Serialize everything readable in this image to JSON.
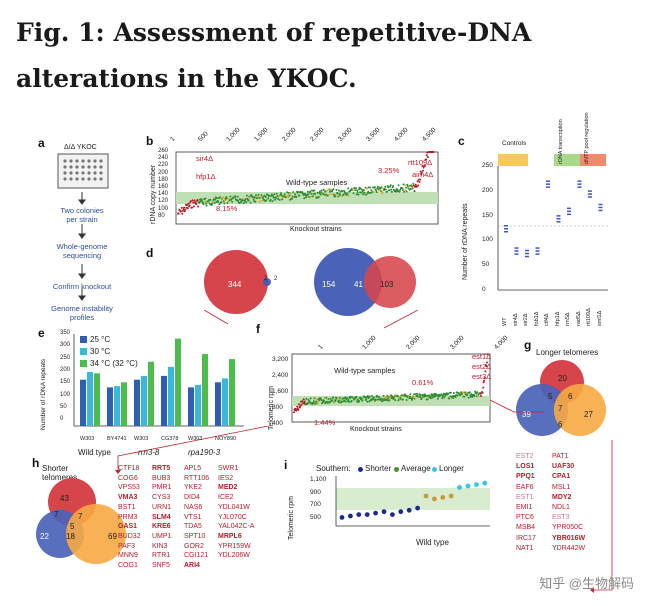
{
  "title": "Fig. 1: Assessment of repetitive-DNA alterations in the YKOC.",
  "panels": {
    "a": {
      "label": "a",
      "plate": "Δ/Δ YKOC",
      "steps": [
        "Two colonies per strain",
        "Whole-genome sequencing",
        "Confirm knockout",
        "Genome instability profiles"
      ]
    },
    "b": {
      "label": "b",
      "y_label": "rDNA copy number",
      "x_label": "Knockout strains",
      "x_ticks": [
        "1",
        "500",
        "1,000",
        "1,500",
        "2,000",
        "2,500",
        "3,000",
        "3,500",
        "4,000",
        "4,500"
      ],
      "y_ticks": [
        "260",
        "240",
        "220",
        "200",
        "180",
        "160",
        "140",
        "120",
        "100",
        "80"
      ],
      "annotations": [
        "sir4Δ",
        "hfp1Δ",
        "Wild-type samples",
        "rtt109Δ",
        "aim4Δ",
        "3.25%",
        "8.15%"
      ]
    },
    "c": {
      "label": "c",
      "y_label": "Number of rDNA repeats",
      "groups": [
        "Controls",
        "rDNA transcription",
        "dNTP pool regulation"
      ],
      "y_ticks": [
        "250",
        "200",
        "150",
        "100",
        "50",
        "0"
      ],
      "x_ticks": [
        "WT",
        "sir4Δ",
        "sir2Δ",
        "fob1Δ",
        "ctf4Δ",
        "hfp1Δ",
        "rrn5Δ",
        "rad5Δ",
        "rtt109Δ",
        "sml1Δ"
      ]
    },
    "d": {
      "label": "d",
      "left_n": "344",
      "left_overlap": "2",
      "left_right": "2",
      "right_left": "154",
      "right_overlap": "41",
      "right_right": "103"
    },
    "e": {
      "label": "e",
      "legend": [
        "25 °C",
        "30 °C",
        "34 °C (32 °C)"
      ],
      "y_label": "Number of rDNA repeats",
      "y_ticks": [
        "350",
        "300",
        "250",
        "200",
        "150",
        "100",
        "50",
        "0"
      ],
      "strains": [
        "W303",
        "BY4741",
        "W303",
        "CG378",
        "W303",
        "NOY890"
      ],
      "groups": [
        "Wild type",
        "rrn3-8",
        "rpa190-3"
      ]
    },
    "f": {
      "label": "f",
      "y_label": "Telomeric rpm",
      "x_label": "Knockout strains",
      "x_ticks": [
        "1",
        "1,000",
        "2,000",
        "3,000",
        "4,000"
      ],
      "y_ticks": [
        "3,200",
        "2,400",
        "1,600",
        "800",
        "400"
      ],
      "annotations": [
        "est1Δ",
        "est2Δ",
        "est3Δ",
        "Wild-type samples",
        "0.61%",
        "1.44%"
      ]
    },
    "g": {
      "label": "g",
      "caption": "Longer telomeres",
      "n1": "20",
      "n2": "39",
      "n3": "27",
      "n4": "5",
      "n5": "6",
      "n6": "7",
      "n7": "6"
    },
    "h": {
      "label": "h",
      "caption": "Shorter telomeres",
      "n1": "43",
      "n2": "22",
      "n3": "69",
      "n4": "7",
      "n5": "7",
      "n6": "18",
      "n7": "5"
    },
    "i": {
      "label": "i",
      "legend_prefix": "Southern:",
      "legend": [
        "Shorter",
        "Average",
        "Longer"
      ],
      "y_label": "Telomeric rpm",
      "y_ticks": [
        "1,100",
        "900",
        "700",
        "500"
      ],
      "wild_type": "Wild type"
    }
  },
  "gene_columns": {
    "col1": [
      "CTF18",
      "COG6",
      "VPS53",
      "VMA3",
      "BST1",
      "PRM3",
      "GAS1",
      "BUD32",
      "PAF3",
      "MNN9",
      "COG1"
    ],
    "col2": [
      "RRT5",
      "BUB3",
      "PMR1",
      "CYS3",
      "URN1",
      "SLM4",
      "KRE6",
      "UMP1",
      "KIN3",
      "RTR1",
      "SNF5"
    ],
    "col3": [
      "APL5",
      "RTT106",
      "YKE2",
      "DID4",
      "NAS6",
      "VTS1",
      "TDA5",
      "SPT10",
      "GOR2",
      "CGI121",
      "ARI4"
    ],
    "col4": [
      "SWR1",
      "IES2",
      "MED2",
      "ICE2",
      "YDL041W",
      "YJL070C",
      "YAL042C-A",
      "MRPL6",
      "YPR159W",
      "YDL206W"
    ],
    "right_col1": [
      "EST2",
      "LOS1",
      "PPQ1",
      "EAF6",
      "EST1",
      "EMI1",
      "PTC6",
      "MSB4",
      "IRC17",
      "NAT1"
    ],
    "right_col2": [
      "PAT1",
      "UAF30",
      "CPA1",
      "MSL1",
      "MDY2",
      "NDL1",
      "EST3",
      "YPR050C",
      "YBR016W",
      "YDR442W"
    ]
  },
  "watermark": "知乎 @生物解码",
  "colors": {
    "red": "#c0262f",
    "blue": "#3d58b5",
    "orange": "#f7a943",
    "green": "#3a8f3a"
  }
}
